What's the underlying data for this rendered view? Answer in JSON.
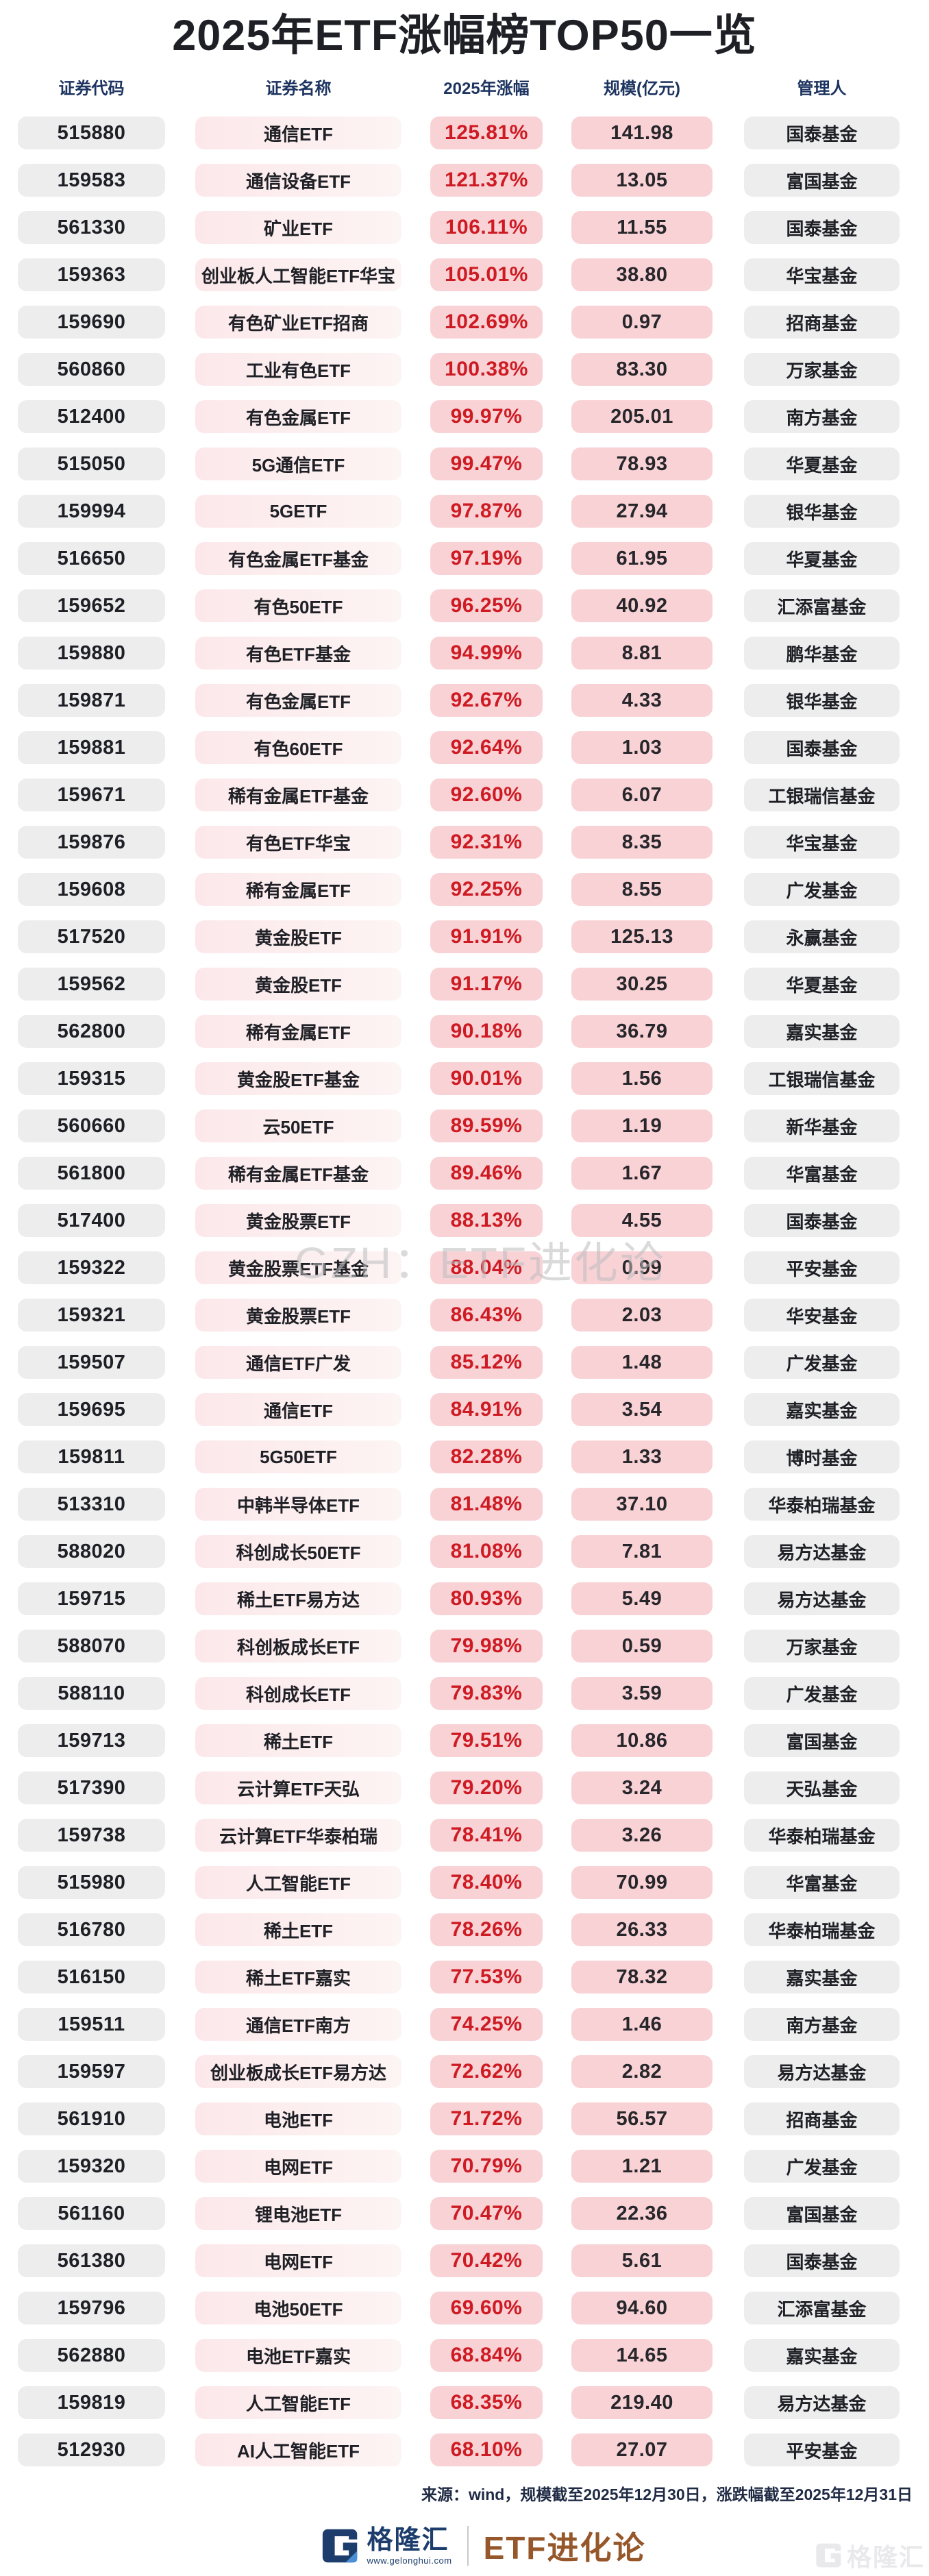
{
  "chart_data": {
    "type": "table",
    "title": "2025年ETF涨幅榜TOP50一览",
    "columns": [
      "证券代码",
      "证券名称",
      "2025年涨幅",
      "规模(亿元)",
      "管理人"
    ],
    "rows": [
      {
        "code": "515880",
        "name": "通信ETF",
        "change": "125.81%",
        "scale": "141.98",
        "manager": "国泰基金"
      },
      {
        "code": "159583",
        "name": "通信设备ETF",
        "change": "121.37%",
        "scale": "13.05",
        "manager": "富国基金"
      },
      {
        "code": "561330",
        "name": "矿业ETF",
        "change": "106.11%",
        "scale": "11.55",
        "manager": "国泰基金"
      },
      {
        "code": "159363",
        "name": "创业板人工智能ETF华宝",
        "change": "105.01%",
        "scale": "38.80",
        "manager": "华宝基金"
      },
      {
        "code": "159690",
        "name": "有色矿业ETF招商",
        "change": "102.69%",
        "scale": "0.97",
        "manager": "招商基金"
      },
      {
        "code": "560860",
        "name": "工业有色ETF",
        "change": "100.38%",
        "scale": "83.30",
        "manager": "万家基金"
      },
      {
        "code": "512400",
        "name": "有色金属ETF",
        "change": "99.97%",
        "scale": "205.01",
        "manager": "南方基金"
      },
      {
        "code": "515050",
        "name": "5G通信ETF",
        "change": "99.47%",
        "scale": "78.93",
        "manager": "华夏基金"
      },
      {
        "code": "159994",
        "name": "5GETF",
        "change": "97.87%",
        "scale": "27.94",
        "manager": "银华基金"
      },
      {
        "code": "516650",
        "name": "有色金属ETF基金",
        "change": "97.19%",
        "scale": "61.95",
        "manager": "华夏基金"
      },
      {
        "code": "159652",
        "name": "有色50ETF",
        "change": "96.25%",
        "scale": "40.92",
        "manager": "汇添富基金"
      },
      {
        "code": "159880",
        "name": "有色ETF基金",
        "change": "94.99%",
        "scale": "8.81",
        "manager": "鹏华基金"
      },
      {
        "code": "159871",
        "name": "有色金属ETF",
        "change": "92.67%",
        "scale": "4.33",
        "manager": "银华基金"
      },
      {
        "code": "159881",
        "name": "有色60ETF",
        "change": "92.64%",
        "scale": "1.03",
        "manager": "国泰基金"
      },
      {
        "code": "159671",
        "name": "稀有金属ETF基金",
        "change": "92.60%",
        "scale": "6.07",
        "manager": "工银瑞信基金"
      },
      {
        "code": "159876",
        "name": "有色ETF华宝",
        "change": "92.31%",
        "scale": "8.35",
        "manager": "华宝基金"
      },
      {
        "code": "159608",
        "name": "稀有金属ETF",
        "change": "92.25%",
        "scale": "8.55",
        "manager": "广发基金"
      },
      {
        "code": "517520",
        "name": "黄金股ETF",
        "change": "91.91%",
        "scale": "125.13",
        "manager": "永赢基金"
      },
      {
        "code": "159562",
        "name": "黄金股ETF",
        "change": "91.17%",
        "scale": "30.25",
        "manager": "华夏基金"
      },
      {
        "code": "562800",
        "name": "稀有金属ETF",
        "change": "90.18%",
        "scale": "36.79",
        "manager": "嘉实基金"
      },
      {
        "code": "159315",
        "name": "黄金股ETF基金",
        "change": "90.01%",
        "scale": "1.56",
        "manager": "工银瑞信基金"
      },
      {
        "code": "560660",
        "name": "云50ETF",
        "change": "89.59%",
        "scale": "1.19",
        "manager": "新华基金"
      },
      {
        "code": "561800",
        "name": "稀有金属ETF基金",
        "change": "89.46%",
        "scale": "1.67",
        "manager": "华富基金"
      },
      {
        "code": "517400",
        "name": "黄金股票ETF",
        "change": "88.13%",
        "scale": "4.55",
        "manager": "国泰基金"
      },
      {
        "code": "159322",
        "name": "黄金股票ETF基金",
        "change": "88.04%",
        "scale": "0.99",
        "manager": "平安基金"
      },
      {
        "code": "159321",
        "name": "黄金股票ETF",
        "change": "86.43%",
        "scale": "2.03",
        "manager": "华安基金"
      },
      {
        "code": "159507",
        "name": "通信ETF广发",
        "change": "85.12%",
        "scale": "1.48",
        "manager": "广发基金"
      },
      {
        "code": "159695",
        "name": "通信ETF",
        "change": "84.91%",
        "scale": "3.54",
        "manager": "嘉实基金"
      },
      {
        "code": "159811",
        "name": "5G50ETF",
        "change": "82.28%",
        "scale": "1.33",
        "manager": "博时基金"
      },
      {
        "code": "513310",
        "name": "中韩半导体ETF",
        "change": "81.48%",
        "scale": "37.10",
        "manager": "华泰柏瑞基金"
      },
      {
        "code": "588020",
        "name": "科创成长50ETF",
        "change": "81.08%",
        "scale": "7.81",
        "manager": "易方达基金"
      },
      {
        "code": "159715",
        "name": "稀土ETF易方达",
        "change": "80.93%",
        "scale": "5.49",
        "manager": "易方达基金"
      },
      {
        "code": "588070",
        "name": "科创板成长ETF",
        "change": "79.98%",
        "scale": "0.59",
        "manager": "万家基金"
      },
      {
        "code": "588110",
        "name": "科创成长ETF",
        "change": "79.83%",
        "scale": "3.59",
        "manager": "广发基金"
      },
      {
        "code": "159713",
        "name": "稀土ETF",
        "change": "79.51%",
        "scale": "10.86",
        "manager": "富国基金"
      },
      {
        "code": "517390",
        "name": "云计算ETF天弘",
        "change": "79.20%",
        "scale": "3.24",
        "manager": "天弘基金"
      },
      {
        "code": "159738",
        "name": "云计算ETF华泰柏瑞",
        "change": "78.41%",
        "scale": "3.26",
        "manager": "华泰柏瑞基金"
      },
      {
        "code": "515980",
        "name": "人工智能ETF",
        "change": "78.40%",
        "scale": "70.99",
        "manager": "华富基金"
      },
      {
        "code": "516780",
        "name": "稀土ETF",
        "change": "78.26%",
        "scale": "26.33",
        "manager": "华泰柏瑞基金"
      },
      {
        "code": "516150",
        "name": "稀土ETF嘉实",
        "change": "77.53%",
        "scale": "78.32",
        "manager": "嘉实基金"
      },
      {
        "code": "159511",
        "name": "通信ETF南方",
        "change": "74.25%",
        "scale": "1.46",
        "manager": "南方基金"
      },
      {
        "code": "159597",
        "name": "创业板成长ETF易方达",
        "change": "72.62%",
        "scale": "2.82",
        "manager": "易方达基金"
      },
      {
        "code": "561910",
        "name": "电池ETF",
        "change": "71.72%",
        "scale": "56.57",
        "manager": "招商基金"
      },
      {
        "code": "159320",
        "name": "电网ETF",
        "change": "70.79%",
        "scale": "1.21",
        "manager": "广发基金"
      },
      {
        "code": "561160",
        "name": "锂电池ETF",
        "change": "70.47%",
        "scale": "22.36",
        "manager": "富国基金"
      },
      {
        "code": "561380",
        "name": "电网ETF",
        "change": "70.42%",
        "scale": "5.61",
        "manager": "国泰基金"
      },
      {
        "code": "159796",
        "name": "电池50ETF",
        "change": "69.60%",
        "scale": "94.60",
        "manager": "汇添富基金"
      },
      {
        "code": "562880",
        "name": "电池ETF嘉实",
        "change": "68.84%",
        "scale": "14.65",
        "manager": "嘉实基金"
      },
      {
        "code": "159819",
        "name": "人工智能ETF",
        "change": "68.35%",
        "scale": "219.40",
        "manager": "易方达基金"
      },
      {
        "code": "512930",
        "name": "AI人工智能ETF",
        "change": "68.10%",
        "scale": "27.07",
        "manager": "平安基金"
      }
    ]
  },
  "center_watermark": "GZH：ETF进化论",
  "source_note": "来源：wind，规模截至2025年12月30日，涨跌幅截至2025年12月31日",
  "footer": {
    "brand": "格隆汇",
    "website": "www.gelonghui.com",
    "column": "ETF进化论",
    "corner_watermark": "格隆汇"
  },
  "colors": {
    "title": "#1e2026",
    "header_navy": "#1d3461",
    "percent_red": "#ce1b23",
    "pill_gray": "#ededee",
    "pill_pink_light": "#fce8ea",
    "pill_pink": "#f9d2d6",
    "brand_navy": "#1d3e6d",
    "brand_accent_blue": "#4a90d9",
    "column_bronze": "#96572a"
  }
}
